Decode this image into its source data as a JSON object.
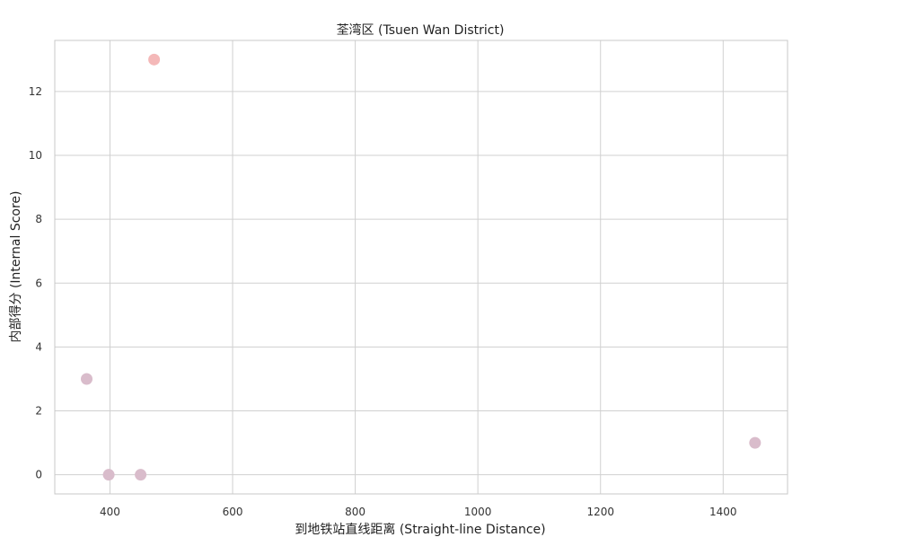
{
  "chart_data": {
    "type": "scatter",
    "title": "荃湾区 (Tsuen Wan District)",
    "xlabel": "到地铁站直线距离 (Straight-line Distance)",
    "ylabel": "内部得分 (Internal Score)",
    "xlim": [
      310,
      1505
    ],
    "ylim": [
      -0.6,
      13.6
    ],
    "xticks": [
      400,
      600,
      800,
      1000,
      1200,
      1400
    ],
    "yticks": [
      0,
      2,
      4,
      6,
      8,
      10,
      12
    ],
    "grid": true,
    "legend": "none",
    "points": [
      {
        "x": 472,
        "y": 13,
        "color": "#f4b8b8"
      },
      {
        "x": 362,
        "y": 3,
        "color": "#d9bccb"
      },
      {
        "x": 398,
        "y": 0,
        "color": "#d9bccb"
      },
      {
        "x": 450,
        "y": 0,
        "color": "#d9bccb"
      },
      {
        "x": 1452,
        "y": 1,
        "color": "#d9bccb"
      }
    ]
  }
}
